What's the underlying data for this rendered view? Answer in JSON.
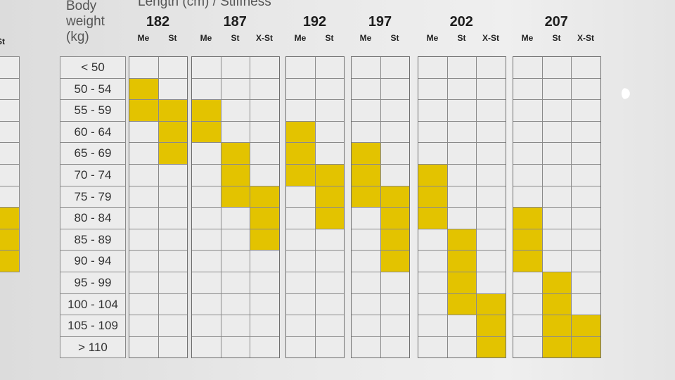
{
  "header": {
    "body_weight_label": [
      "Body",
      "weight",
      "(kg)"
    ],
    "length_stiffness_label": "Length (cm) / Stiffness"
  },
  "chart_data": {
    "type": "table",
    "title": "",
    "row_header": "Body weight (kg)",
    "column_header": "Length (cm) / Stiffness",
    "weights": [
      "< 50",
      "50 - 54",
      "55 - 59",
      "60 - 64",
      "65 - 69",
      "70 - 74",
      "75 - 79",
      "80 - 84",
      "85 - 89",
      "90 - 94",
      "95 - 99",
      "100 - 104",
      "105 - 109",
      "> 110"
    ],
    "highlight_color": "#e3c300",
    "partial_left_column": {
      "stiffness": "St",
      "filled": [
        "80 - 84",
        "85 - 89",
        "90 - 94"
      ]
    },
    "groups": [
      {
        "length": "182",
        "columns": [
          {
            "stiffness": "Me",
            "filled": [
              "50 - 54",
              "55 - 59"
            ]
          },
          {
            "stiffness": "St",
            "filled": [
              "55 - 59",
              "60 - 64",
              "65 - 69"
            ]
          }
        ]
      },
      {
        "length": "187",
        "columns": [
          {
            "stiffness": "Me",
            "filled": [
              "55 - 59",
              "60 - 64"
            ]
          },
          {
            "stiffness": "St",
            "filled": [
              "65 - 69",
              "70 - 74",
              "75 - 79"
            ]
          },
          {
            "stiffness": "X-St",
            "filled": [
              "75 - 79",
              "80 - 84",
              "85 - 89"
            ]
          }
        ]
      },
      {
        "length": "192",
        "columns": [
          {
            "stiffness": "Me",
            "filled": [
              "60 - 64",
              "65 - 69",
              "70 - 74"
            ]
          },
          {
            "stiffness": "St",
            "filled": [
              "70 - 74",
              "75 - 79",
              "80 - 84"
            ]
          }
        ]
      },
      {
        "length": "197",
        "columns": [
          {
            "stiffness": "Me",
            "filled": [
              "65 - 69",
              "70 - 74",
              "75 - 79"
            ]
          },
          {
            "stiffness": "St",
            "filled": [
              "75 - 79",
              "80 - 84",
              "85 - 89",
              "90 - 94"
            ]
          }
        ]
      },
      {
        "length": "202",
        "columns": [
          {
            "stiffness": "Me",
            "filled": [
              "70 - 74",
              "75 - 79",
              "80 - 84"
            ]
          },
          {
            "stiffness": "St",
            "filled": [
              "85 - 89",
              "90 - 94",
              "95 - 99",
              "100 - 104"
            ]
          },
          {
            "stiffness": "X-St",
            "filled": [
              "100 - 104",
              "105 - 109",
              "> 110"
            ]
          }
        ]
      },
      {
        "length": "207",
        "columns": [
          {
            "stiffness": "Me",
            "filled": [
              "80 - 84",
              "85 - 89",
              "90 - 94"
            ]
          },
          {
            "stiffness": "St",
            "filled": [
              "95 - 99",
              "100 - 104",
              "105 - 109",
              "> 110"
            ]
          },
          {
            "stiffness": "X-St",
            "filled": [
              "105 - 109",
              "> 110"
            ]
          }
        ]
      }
    ]
  }
}
